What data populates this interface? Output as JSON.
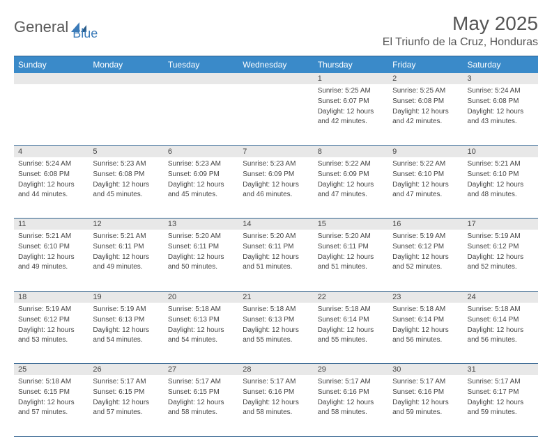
{
  "logo": {
    "text1": "General",
    "text2": "Blue"
  },
  "title": "May 2025",
  "location": "El Triunfo de la Cruz, Honduras",
  "colors": {
    "header_bg": "#3a8ac9",
    "header_border": "#2a5d8a",
    "daynum_bg": "#e8e8e8",
    "text": "#444444",
    "logo_gray": "#5a5a5a",
    "logo_blue": "#3a7ab8"
  },
  "daynames": [
    "Sunday",
    "Monday",
    "Tuesday",
    "Wednesday",
    "Thursday",
    "Friday",
    "Saturday"
  ],
  "weeks": [
    {
      "nums": [
        "",
        "",
        "",
        "",
        "1",
        "2",
        "3"
      ],
      "cells": [
        null,
        null,
        null,
        null,
        {
          "sunrise": "5:25 AM",
          "sunset": "6:07 PM",
          "daylight": "12 hours and 42 minutes."
        },
        {
          "sunrise": "5:25 AM",
          "sunset": "6:08 PM",
          "daylight": "12 hours and 42 minutes."
        },
        {
          "sunrise": "5:24 AM",
          "sunset": "6:08 PM",
          "daylight": "12 hours and 43 minutes."
        }
      ]
    },
    {
      "nums": [
        "4",
        "5",
        "6",
        "7",
        "8",
        "9",
        "10"
      ],
      "cells": [
        {
          "sunrise": "5:24 AM",
          "sunset": "6:08 PM",
          "daylight": "12 hours and 44 minutes."
        },
        {
          "sunrise": "5:23 AM",
          "sunset": "6:08 PM",
          "daylight": "12 hours and 45 minutes."
        },
        {
          "sunrise": "5:23 AM",
          "sunset": "6:09 PM",
          "daylight": "12 hours and 45 minutes."
        },
        {
          "sunrise": "5:23 AM",
          "sunset": "6:09 PM",
          "daylight": "12 hours and 46 minutes."
        },
        {
          "sunrise": "5:22 AM",
          "sunset": "6:09 PM",
          "daylight": "12 hours and 47 minutes."
        },
        {
          "sunrise": "5:22 AM",
          "sunset": "6:10 PM",
          "daylight": "12 hours and 47 minutes."
        },
        {
          "sunrise": "5:21 AM",
          "sunset": "6:10 PM",
          "daylight": "12 hours and 48 minutes."
        }
      ]
    },
    {
      "nums": [
        "11",
        "12",
        "13",
        "14",
        "15",
        "16",
        "17"
      ],
      "cells": [
        {
          "sunrise": "5:21 AM",
          "sunset": "6:10 PM",
          "daylight": "12 hours and 49 minutes."
        },
        {
          "sunrise": "5:21 AM",
          "sunset": "6:11 PM",
          "daylight": "12 hours and 49 minutes."
        },
        {
          "sunrise": "5:20 AM",
          "sunset": "6:11 PM",
          "daylight": "12 hours and 50 minutes."
        },
        {
          "sunrise": "5:20 AM",
          "sunset": "6:11 PM",
          "daylight": "12 hours and 51 minutes."
        },
        {
          "sunrise": "5:20 AM",
          "sunset": "6:11 PM",
          "daylight": "12 hours and 51 minutes."
        },
        {
          "sunrise": "5:19 AM",
          "sunset": "6:12 PM",
          "daylight": "12 hours and 52 minutes."
        },
        {
          "sunrise": "5:19 AM",
          "sunset": "6:12 PM",
          "daylight": "12 hours and 52 minutes."
        }
      ]
    },
    {
      "nums": [
        "18",
        "19",
        "20",
        "21",
        "22",
        "23",
        "24"
      ],
      "cells": [
        {
          "sunrise": "5:19 AM",
          "sunset": "6:12 PM",
          "daylight": "12 hours and 53 minutes."
        },
        {
          "sunrise": "5:19 AM",
          "sunset": "6:13 PM",
          "daylight": "12 hours and 54 minutes."
        },
        {
          "sunrise": "5:18 AM",
          "sunset": "6:13 PM",
          "daylight": "12 hours and 54 minutes."
        },
        {
          "sunrise": "5:18 AM",
          "sunset": "6:13 PM",
          "daylight": "12 hours and 55 minutes."
        },
        {
          "sunrise": "5:18 AM",
          "sunset": "6:14 PM",
          "daylight": "12 hours and 55 minutes."
        },
        {
          "sunrise": "5:18 AM",
          "sunset": "6:14 PM",
          "daylight": "12 hours and 56 minutes."
        },
        {
          "sunrise": "5:18 AM",
          "sunset": "6:14 PM",
          "daylight": "12 hours and 56 minutes."
        }
      ]
    },
    {
      "nums": [
        "25",
        "26",
        "27",
        "28",
        "29",
        "30",
        "31"
      ],
      "cells": [
        {
          "sunrise": "5:18 AM",
          "sunset": "6:15 PM",
          "daylight": "12 hours and 57 minutes."
        },
        {
          "sunrise": "5:17 AM",
          "sunset": "6:15 PM",
          "daylight": "12 hours and 57 minutes."
        },
        {
          "sunrise": "5:17 AM",
          "sunset": "6:15 PM",
          "daylight": "12 hours and 58 minutes."
        },
        {
          "sunrise": "5:17 AM",
          "sunset": "6:16 PM",
          "daylight": "12 hours and 58 minutes."
        },
        {
          "sunrise": "5:17 AM",
          "sunset": "6:16 PM",
          "daylight": "12 hours and 58 minutes."
        },
        {
          "sunrise": "5:17 AM",
          "sunset": "6:16 PM",
          "daylight": "12 hours and 59 minutes."
        },
        {
          "sunrise": "5:17 AM",
          "sunset": "6:17 PM",
          "daylight": "12 hours and 59 minutes."
        }
      ]
    }
  ],
  "labels": {
    "sunrise": "Sunrise: ",
    "sunset": "Sunset: ",
    "daylight": "Daylight: "
  }
}
